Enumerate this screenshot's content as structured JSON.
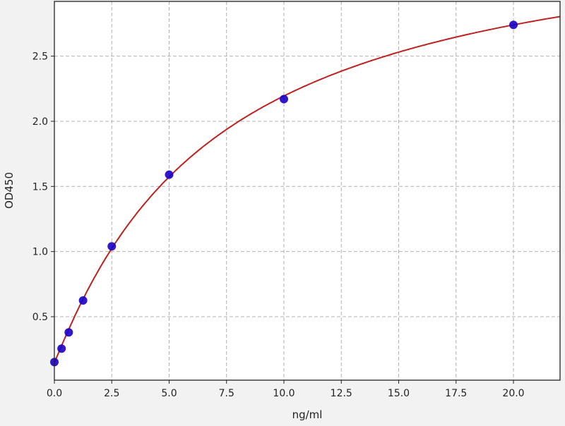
{
  "chart_data": {
    "type": "scatter",
    "title": "",
    "xlabel": "ng/ml",
    "ylabel": "OD450",
    "xlim": [
      0,
      22.03
    ],
    "ylim": [
      0.013,
      2.92
    ],
    "xticks": [
      "0.0",
      "2.5",
      "5.0",
      "7.5",
      "10.0",
      "12.5",
      "15.0",
      "17.5",
      "20.0"
    ],
    "yticks": [
      "0.5",
      "1.0",
      "1.5",
      "2.0",
      "2.5"
    ],
    "grid": true,
    "series": [
      {
        "x": [
          0,
          0.3125,
          0.625,
          1.25,
          2.5,
          5,
          10,
          20
        ],
        "y": [
          0.152,
          0.255,
          0.38,
          0.625,
          1.04,
          1.59,
          2.17,
          2.74
        ],
        "marker_color": "#1a00c8"
      }
    ],
    "fit_curve_color": "#c0201e"
  }
}
